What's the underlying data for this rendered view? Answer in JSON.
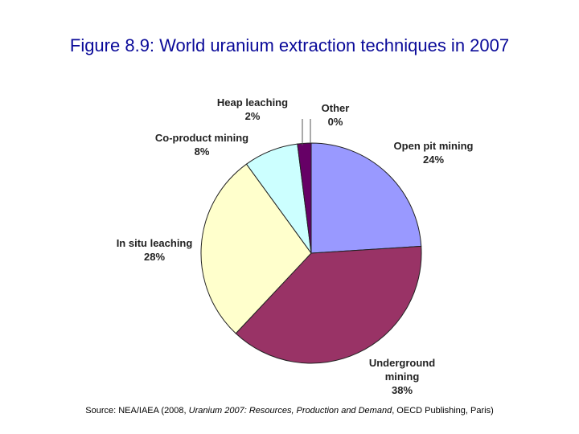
{
  "page": {
    "title": "Figure 8.9: World uranium extraction techniques in 2007",
    "source": {
      "prefix": "Source: NEA/IAEA (2008, ",
      "publication": "Uranium 2007: Resources, Production and Demand",
      "suffix": ", OECD Publishing, Paris)"
    }
  },
  "chart_data": {
    "type": "pie",
    "start_angle_deg": 0,
    "direction": "clockwise",
    "slices": [
      {
        "label": "Open pit mining",
        "label_lines": [
          "Open pit mining"
        ],
        "value": 24,
        "value_label": "24%",
        "color": "#9999ff"
      },
      {
        "label": "Underground mining",
        "label_lines": [
          "Underground",
          "mining"
        ],
        "value": 38,
        "value_label": "38%",
        "color": "#993366"
      },
      {
        "label": "In situ leaching",
        "label_lines": [
          "In situ leaching"
        ],
        "value": 28,
        "value_label": "28%",
        "color": "#ffffcc"
      },
      {
        "label": "Co-product mining",
        "label_lines": [
          "Co-product mining"
        ],
        "value": 8,
        "value_label": "8%",
        "color": "#ccffff"
      },
      {
        "label": "Heap leaching",
        "label_lines": [
          "Heap leaching"
        ],
        "value": 2,
        "value_label": "2%",
        "color": "#660066"
      },
      {
        "label": "Other",
        "label_lines": [
          "Other"
        ],
        "value": 0,
        "value_label": "0%",
        "color": "#cccccc"
      }
    ]
  }
}
